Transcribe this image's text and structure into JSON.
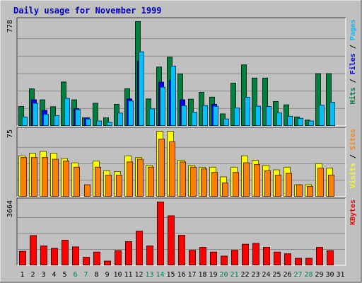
{
  "chart_data": {
    "title": "Daily usage for November 1999",
    "type": "bar",
    "colors": {
      "hits": "#008040",
      "files": "#0000ff",
      "pages": "#00c0ff",
      "visits": "#ffff00",
      "sites": "#ff8000",
      "kbytes": "#ff0000",
      "weekend_label": "#00805c",
      "weekday_label": "#000000",
      "panel_bg": "#c0c0c0",
      "title": "#0000c0"
    },
    "days": [
      "1",
      "2",
      "3",
      "4",
      "5",
      "6",
      "7",
      "8",
      "9",
      "10",
      "11",
      "12",
      "13",
      "14",
      "15",
      "16",
      "17",
      "18",
      "19",
      "20",
      "21",
      "22",
      "23",
      "24",
      "25",
      "26",
      "27",
      "28",
      "29",
      "30",
      "31"
    ],
    "weekend_days": [
      "6",
      "7",
      "13",
      "14",
      "20",
      "21",
      "27",
      "28"
    ],
    "panels": [
      {
        "id": "hits",
        "max_label": "778",
        "ymax": 778,
        "legend": [
          {
            "text": "Hits",
            "color": "#008040"
          },
          {
            "text": " / ",
            "color": "#000000"
          },
          {
            "text": "Files",
            "color": "#0000ff"
          },
          {
            "text": " / ",
            "color": "#000000"
          },
          {
            "text": "Pages",
            "color": "#00c0ff"
          }
        ],
        "series": [
          {
            "name": "Hits",
            "values": [
              147,
              278,
              196,
              145,
              329,
              196,
              63,
              171,
              63,
              163,
              279,
              778,
              203,
              440,
              513,
              389,
              201,
              252,
              216,
              92,
              320,
              456,
              358,
              358,
              184,
              159,
              69,
              46,
              391,
              391,
              0
            ]
          },
          {
            "name": "Files",
            "values": [
              0,
              196,
              118,
              0,
              0,
              131,
              63,
              0,
              0,
              0,
              203,
              483,
              0,
              327,
              342,
              196,
              0,
              0,
              163,
              0,
              0,
              0,
              0,
              0,
              0,
              0,
              0,
              0,
              0,
              0,
              0
            ]
          },
          {
            "name": "Pages",
            "values": [
              69,
              171,
              88,
              79,
              207,
              124,
              54,
              39,
              29,
              98,
              188,
              553,
              130,
              290,
              447,
              152,
              104,
              154,
              149,
              54,
              136,
              215,
              149,
              147,
              99,
              74,
              59,
              39,
              156,
              178,
              0
            ]
          }
        ]
      },
      {
        "id": "visits",
        "max_label": "75",
        "ymax": 75,
        "legend": [
          {
            "text": "Visits",
            "color": "#ffff00"
          },
          {
            "text": " / ",
            "color": "#000000"
          },
          {
            "text": "Sites",
            "color": "#ff8000"
          }
        ],
        "series": [
          {
            "name": "Visits",
            "values": [
              47,
              50,
              52,
              50,
              44,
              39,
              0,
              41,
              30,
              29,
              47,
              45,
              36,
              75,
              75,
              42,
              36,
              34,
              34,
              23,
              34,
              47,
              42,
              36,
              31,
              34,
              14,
              14,
              38,
              33,
              0
            ]
          },
          {
            "name": "Sites",
            "values": [
              45,
              45,
              45,
              43,
              41,
              34,
              14,
              34,
              25,
              25,
              40,
              43,
              34,
              66,
              63,
              40,
              34,
              32,
              28,
              16,
              28,
              39,
              37,
              30,
              25,
              27,
              14,
              12,
              33,
              25,
              0
            ]
          }
        ]
      },
      {
        "id": "kbytes",
        "max_label": "3664",
        "ymax": 3664,
        "legend": [
          {
            "text": "KBytes",
            "color": "#ff0000"
          }
        ],
        "series": [
          {
            "name": "KBytes",
            "values": [
              820,
              1730,
              1130,
              990,
              1460,
              1080,
              480,
              780,
              260,
              860,
              1380,
              1980,
              1130,
              3664,
              2870,
              1740,
              880,
              1050,
              780,
              550,
              880,
              1230,
              1280,
              1050,
              780,
              680,
              420,
              420,
              1050,
              860,
              0
            ]
          }
        ]
      }
    ]
  }
}
